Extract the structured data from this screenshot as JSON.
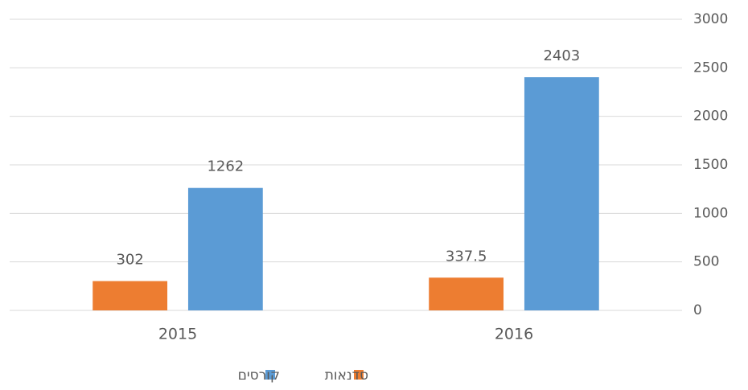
{
  "chart_data": {
    "type": "bar",
    "categories": [
      "2015",
      "2016"
    ],
    "series": [
      {
        "name": "סדנאות",
        "color": "#ed7d31",
        "values": [
          302,
          337.5
        ]
      },
      {
        "name": "קורסים",
        "color": "#5b9bd5",
        "values": [
          1262,
          2403
        ]
      }
    ],
    "ylim": [
      0,
      3000
    ],
    "yticks": [
      0,
      500,
      1000,
      1500,
      2000,
      2500,
      3000
    ],
    "grid": true,
    "y_axis_side": "right",
    "legend": "bottom"
  }
}
